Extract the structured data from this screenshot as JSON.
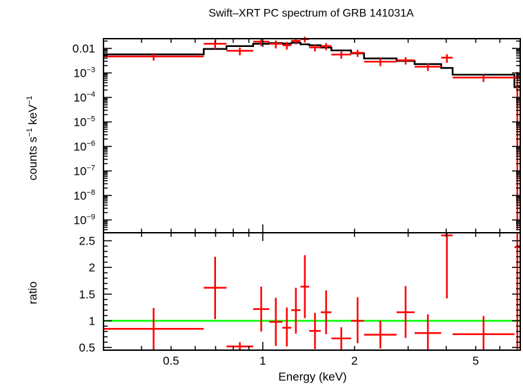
{
  "chart_data": [
    {
      "type": "scatter",
      "panel": "spectrum",
      "title": "Swift–XRT PC spectrum of GRB 141031A",
      "xlabel": "Energy (keV)",
      "ylabel_parts": [
        "counts s",
        "−1",
        " keV",
        "−1"
      ],
      "xscale": "log",
      "yscale": "log",
      "xlim": [
        0.3,
        7.0
      ],
      "ylim": [
        3e-10,
        0.025
      ],
      "y_tick_labels": [
        {
          "v": 0.01,
          "base": "0.01",
          "exp": ""
        },
        {
          "v": 0.001,
          "base": "10",
          "exp": "−3"
        },
        {
          "v": 0.0001,
          "base": "10",
          "exp": "−4"
        },
        {
          "v": 1e-05,
          "base": "10",
          "exp": "−5"
        },
        {
          "v": 1e-06,
          "base": "10",
          "exp": "−6"
        },
        {
          "v": 1e-07,
          "base": "10",
          "exp": "−7"
        },
        {
          "v": 1e-08,
          "base": "10",
          "exp": "−8"
        },
        {
          "v": 1e-09,
          "base": "10",
          "exp": "−9"
        }
      ],
      "data": {
        "color": "#ff0000",
        "points": [
          {
            "x_lo": 0.3,
            "x_hi": 0.64,
            "y": 0.0047,
            "y_lo": 0.0032,
            "y_hi": 0.0064
          },
          {
            "x_lo": 0.64,
            "x_hi": 0.76,
            "y": 0.0155,
            "y_lo": 0.0095,
            "y_hi": 0.0215
          },
          {
            "x_lo": 0.76,
            "x_hi": 0.93,
            "y": 0.008,
            "y_lo": 0.0052,
            "y_hi": 0.0108
          },
          {
            "x_lo": 0.93,
            "x_hi": 1.05,
            "y": 0.019,
            "y_lo": 0.0125,
            "y_hi": 0.0255
          },
          {
            "x_lo": 1.05,
            "x_hi": 1.16,
            "y": 0.0155,
            "y_lo": 0.01,
            "y_hi": 0.021
          },
          {
            "x_lo": 1.16,
            "x_hi": 1.24,
            "y": 0.0135,
            "y_lo": 0.009,
            "y_hi": 0.0185
          },
          {
            "x_lo": 1.24,
            "x_hi": 1.33,
            "y": 0.0205,
            "y_lo": 0.0145,
            "y_hi": 0.0265
          },
          {
            "x_lo": 1.33,
            "x_hi": 1.42,
            "y": 0.024,
            "y_lo": 0.0175,
            "y_hi": 0.03
          },
          {
            "x_lo": 1.42,
            "x_hi": 1.55,
            "y": 0.011,
            "y_lo": 0.0075,
            "y_hi": 0.0145
          },
          {
            "x_lo": 1.55,
            "x_hi": 1.68,
            "y": 0.0125,
            "y_lo": 0.0085,
            "y_hi": 0.0165
          },
          {
            "x_lo": 1.68,
            "x_hi": 1.95,
            "y": 0.0056,
            "y_lo": 0.0038,
            "y_hi": 0.0074
          },
          {
            "x_lo": 1.95,
            "x_hi": 2.15,
            "y": 0.0066,
            "y_lo": 0.0045,
            "y_hi": 0.0087
          },
          {
            "x_lo": 2.15,
            "x_hi": 2.75,
            "y": 0.0029,
            "y_lo": 0.0019,
            "y_hi": 0.0039
          },
          {
            "x_lo": 2.75,
            "x_hi": 3.15,
            "y": 0.0033,
            "y_lo": 0.0022,
            "y_hi": 0.0044
          },
          {
            "x_lo": 3.15,
            "x_hi": 3.85,
            "y": 0.0018,
            "y_lo": 0.0012,
            "y_hi": 0.0024
          },
          {
            "x_lo": 3.85,
            "x_hi": 4.2,
            "y": 0.0042,
            "y_lo": 0.0026,
            "y_hi": 0.0058
          },
          {
            "x_lo": 4.2,
            "x_hi": 6.7,
            "y": 0.00065,
            "y_lo": 0.00043,
            "y_hi": 0.00087
          },
          {
            "x_lo": 6.7,
            "x_hi": 7.0,
            "y": 0.00065,
            "y_lo": 4e-10,
            "y_hi": 0.0011
          }
        ]
      },
      "model": {
        "color": "#000000",
        "steps": [
          {
            "x_lo": 0.3,
            "x_hi": 0.64,
            "y": 0.0057
          },
          {
            "x_lo": 0.64,
            "x_hi": 0.76,
            "y": 0.0095
          },
          {
            "x_lo": 0.76,
            "x_hi": 0.93,
            "y": 0.0125
          },
          {
            "x_lo": 0.93,
            "x_hi": 1.05,
            "y": 0.0155
          },
          {
            "x_lo": 1.05,
            "x_hi": 1.16,
            "y": 0.0165
          },
          {
            "x_lo": 1.16,
            "x_hi": 1.24,
            "y": 0.0158
          },
          {
            "x_lo": 1.24,
            "x_hi": 1.33,
            "y": 0.017
          },
          {
            "x_lo": 1.33,
            "x_hi": 1.42,
            "y": 0.0148
          },
          {
            "x_lo": 1.42,
            "x_hi": 1.55,
            "y": 0.0135
          },
          {
            "x_lo": 1.55,
            "x_hi": 1.68,
            "y": 0.0108
          },
          {
            "x_lo": 1.68,
            "x_hi": 1.95,
            "y": 0.0083
          },
          {
            "x_lo": 1.95,
            "x_hi": 2.15,
            "y": 0.0063
          },
          {
            "x_lo": 2.15,
            "x_hi": 2.75,
            "y": 0.0039
          },
          {
            "x_lo": 2.75,
            "x_hi": 3.15,
            "y": 0.0031
          },
          {
            "x_lo": 3.15,
            "x_hi": 3.85,
            "y": 0.0023
          },
          {
            "x_lo": 3.85,
            "x_hi": 4.2,
            "y": 0.0016
          },
          {
            "x_lo": 4.2,
            "x_hi": 6.7,
            "y": 0.00085
          },
          {
            "x_lo": 6.7,
            "x_hi": 7.0,
            "y": 0.00026
          }
        ]
      }
    },
    {
      "type": "scatter",
      "panel": "ratio",
      "xlabel": "Energy (keV)",
      "ylabel": "ratio",
      "xscale": "log",
      "xlim": [
        0.3,
        7.0
      ],
      "ylim": [
        0.45,
        2.65
      ],
      "x_tick_labels": [
        {
          "v": 0.5,
          "label": "0.5"
        },
        {
          "v": 1,
          "label": "1"
        },
        {
          "v": 2,
          "label": "2"
        },
        {
          "v": 5,
          "label": "5"
        }
      ],
      "y_tick_labels": [
        {
          "v": 0.5,
          "label": "0.5"
        },
        {
          "v": 1,
          "label": "1"
        },
        {
          "v": 1.5,
          "label": "1.5"
        },
        {
          "v": 2,
          "label": "2"
        },
        {
          "v": 2.5,
          "label": "2.5"
        }
      ],
      "reference_line": {
        "y": 1,
        "color": "#00ff00"
      },
      "data": {
        "color": "#ff0000",
        "points": [
          {
            "x_lo": 0.3,
            "x_hi": 0.64,
            "y": 0.85,
            "y_lo": 0.45,
            "y_hi": 1.24
          },
          {
            "x_lo": 0.64,
            "x_hi": 0.76,
            "y": 1.62,
            "y_lo": 1.03,
            "y_hi": 2.2
          },
          {
            "x_lo": 0.76,
            "x_hi": 0.93,
            "y": 0.52,
            "y_lo": 0.45,
            "y_hi": 0.6
          },
          {
            "x_lo": 0.93,
            "x_hi": 1.05,
            "y": 1.22,
            "y_lo": 0.8,
            "y_hi": 1.64
          },
          {
            "x_lo": 1.05,
            "x_hi": 1.16,
            "y": 0.98,
            "y_lo": 0.53,
            "y_hi": 1.43
          },
          {
            "x_lo": 1.16,
            "x_hi": 1.24,
            "y": 0.87,
            "y_lo": 0.52,
            "y_hi": 1.25
          },
          {
            "x_lo": 1.24,
            "x_hi": 1.33,
            "y": 1.2,
            "y_lo": 0.76,
            "y_hi": 1.62
          },
          {
            "x_lo": 1.33,
            "x_hi": 1.42,
            "y": 1.64,
            "y_lo": 1.05,
            "y_hi": 2.23
          },
          {
            "x_lo": 1.42,
            "x_hi": 1.55,
            "y": 0.81,
            "y_lo": 0.47,
            "y_hi": 1.15
          },
          {
            "x_lo": 1.55,
            "x_hi": 1.68,
            "y": 1.16,
            "y_lo": 0.75,
            "y_hi": 1.57
          },
          {
            "x_lo": 1.68,
            "x_hi": 1.95,
            "y": 0.67,
            "y_lo": 0.45,
            "y_hi": 0.88
          },
          {
            "x_lo": 1.95,
            "x_hi": 2.15,
            "y": 1.0,
            "y_lo": 0.58,
            "y_hi": 1.44
          },
          {
            "x_lo": 2.15,
            "x_hi": 2.75,
            "y": 0.74,
            "y_lo": 0.48,
            "y_hi": 1.0
          },
          {
            "x_lo": 2.75,
            "x_hi": 3.15,
            "y": 1.16,
            "y_lo": 0.68,
            "y_hi": 1.65
          },
          {
            "x_lo": 3.15,
            "x_hi": 3.85,
            "y": 0.77,
            "y_lo": 0.45,
            "y_hi": 1.12
          },
          {
            "x_lo": 3.85,
            "x_hi": 4.2,
            "y": 2.6,
            "y_lo": 1.42,
            "y_hi": 2.65
          },
          {
            "x_lo": 4.2,
            "x_hi": 6.7,
            "y": 0.75,
            "y_lo": 0.45,
            "y_hi": 1.09
          },
          {
            "x_lo": 6.7,
            "x_hi": 7.0,
            "y": 2.38,
            "y_lo": 0.45,
            "y_hi": 2.65
          }
        ]
      }
    }
  ]
}
